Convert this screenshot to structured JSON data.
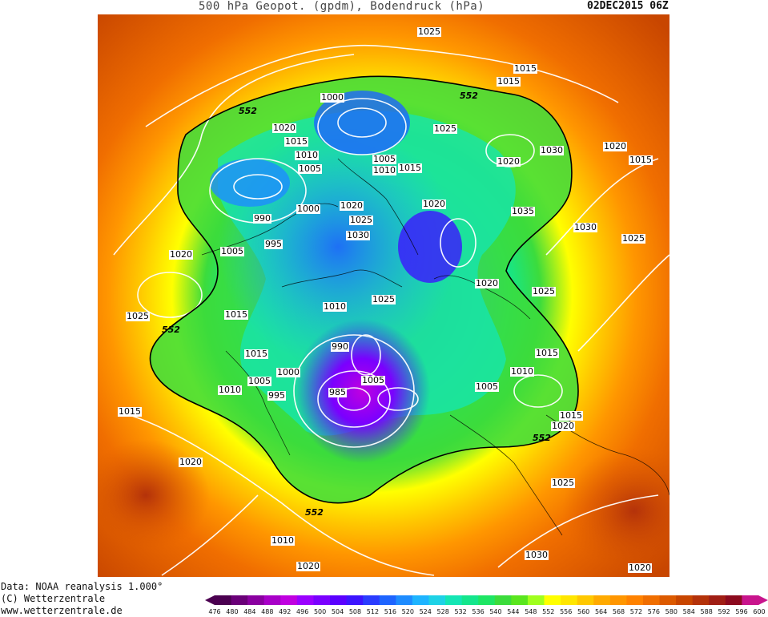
{
  "header": {
    "title": "500 hPa Geopot. (gpdm), Bodendruck (hPa)",
    "datetime": "02DEC2015 06Z"
  },
  "credits": {
    "line1": "Data: NOAA reanalysis 1.000°",
    "line2": "(C) Wetterzentrale",
    "line3": "www.wetterzentrale.de"
  },
  "colorbar": {
    "ticks": [
      "476",
      "480",
      "484",
      "488",
      "492",
      "496",
      "500",
      "504",
      "508",
      "512",
      "516",
      "520",
      "524",
      "528",
      "532",
      "536",
      "540",
      "544",
      "548",
      "552",
      "556",
      "560",
      "564",
      "568",
      "572",
      "576",
      "580",
      "584",
      "588",
      "592",
      "596",
      "600"
    ],
    "colors": [
      "#4b0050",
      "#6a0078",
      "#8a00a0",
      "#a800c8",
      "#c000e0",
      "#9a00ff",
      "#7a00ff",
      "#5a00ff",
      "#3c14ff",
      "#2a3cff",
      "#1e64ff",
      "#1e8cff",
      "#1eb4ff",
      "#1ed2e6",
      "#14e6b4",
      "#14e68c",
      "#1ee664",
      "#3cdc3c",
      "#5ae61e",
      "#a0ff1e",
      "#ffff00",
      "#ffe600",
      "#ffc800",
      "#ffaa00",
      "#ff9600",
      "#ff8200",
      "#f06e00",
      "#dc5a00",
      "#c84600",
      "#b4320a",
      "#a01e14",
      "#8c0a1e",
      "#c8148c"
    ]
  },
  "isobar_labels": [
    {
      "text": "1025"
    },
    {
      "text": "1015"
    },
    {
      "text": "1015"
    },
    {
      "text": "1000"
    },
    {
      "text": "1020"
    },
    {
      "text": "1015"
    },
    {
      "text": "1010"
    },
    {
      "text": "1005"
    },
    {
      "text": "1005"
    },
    {
      "text": "1010"
    },
    {
      "text": "1015"
    },
    {
      "text": "1025"
    },
    {
      "text": "1030"
    },
    {
      "text": "1020"
    },
    {
      "text": "1020"
    },
    {
      "text": "1015"
    },
    {
      "text": "1000"
    },
    {
      "text": "1020"
    },
    {
      "text": "1025"
    },
    {
      "text": "1030"
    },
    {
      "text": "1020"
    },
    {
      "text": "1035"
    },
    {
      "text": "1030"
    },
    {
      "text": "1025"
    },
    {
      "text": "990"
    },
    {
      "text": "995"
    },
    {
      "text": "1005"
    },
    {
      "text": "1020"
    },
    {
      "text": "1020"
    },
    {
      "text": "1025"
    },
    {
      "text": "1025"
    },
    {
      "text": "1015"
    },
    {
      "text": "1010"
    },
    {
      "text": "990"
    },
    {
      "text": "1015"
    },
    {
      "text": "1000"
    },
    {
      "text": "1005"
    },
    {
      "text": "995"
    },
    {
      "text": "985"
    },
    {
      "text": "1005"
    },
    {
      "text": "1010"
    },
    {
      "text": "1005"
    },
    {
      "text": "1015"
    },
    {
      "text": "1010"
    },
    {
      "text": "1015"
    },
    {
      "text": "1020"
    },
    {
      "text": "1020"
    },
    {
      "text": "1015"
    },
    {
      "text": "1025"
    },
    {
      "text": "1025"
    },
    {
      "text": "1030"
    },
    {
      "text": "1020"
    },
    {
      "text": "1020"
    },
    {
      "text": "1010"
    }
  ],
  "contour_labels": [
    {
      "text": "552"
    },
    {
      "text": "552"
    },
    {
      "text": "552"
    },
    {
      "text": "552"
    },
    {
      "text": "552"
    }
  ]
}
